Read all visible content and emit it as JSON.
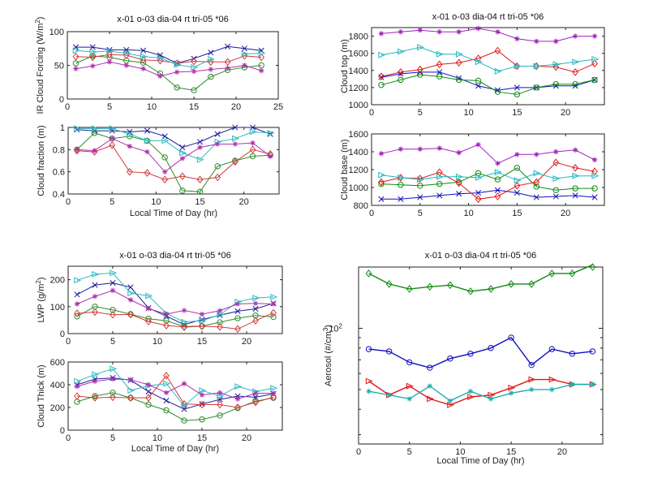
{
  "figure": {
    "legend_title": "x-01  o-03  dia-04  rt tri-05  *06"
  },
  "chart_data": [
    {
      "id": "ir-forcing",
      "type": "line",
      "title": "x-01  o-03  dia-04  rt tri-05  *06",
      "xlabel": "",
      "ylabel": "IR Cloud Forcing (W/m^2)",
      "xlim": [
        0,
        25
      ],
      "ylim": [
        0,
        100
      ],
      "xticks": [
        0,
        5,
        10,
        15,
        20,
        25
      ],
      "yticks": [
        0,
        50,
        100
      ],
      "x": [
        1,
        3,
        5,
        7,
        9,
        11,
        13,
        15,
        17,
        19,
        21,
        23
      ],
      "series": [
        {
          "name": "01",
          "marker": "x",
          "color": "#1a1a9a",
          "values": [
            77,
            77,
            73,
            73,
            72,
            65,
            53,
            60,
            69,
            78,
            75,
            72
          ]
        },
        {
          "name": "03",
          "marker": "o",
          "color": "#2e8b2e",
          "values": [
            53,
            64,
            62,
            57,
            54,
            38,
            17,
            13,
            33,
            43,
            47,
            50
          ]
        },
        {
          "name": "04",
          "marker": "diamond",
          "color": "#d03a3a",
          "values": [
            63,
            62,
            66,
            65,
            58,
            57,
            53,
            56,
            55,
            55,
            64,
            62
          ]
        },
        {
          "name": "05",
          "marker": "triangle-right",
          "color": "#30b8c0",
          "values": [
            72,
            70,
            71,
            68,
            63,
            61,
            51,
            47,
            59,
            null,
            67,
            68
          ]
        },
        {
          "name": "06",
          "marker": "star",
          "color": "#b030b0",
          "values": [
            45,
            49,
            55,
            50,
            45,
            34,
            40,
            41,
            44,
            46,
            50,
            42
          ]
        }
      ]
    },
    {
      "id": "cloud-fraction",
      "type": "line",
      "title": "",
      "xlabel": "Local Time of Day (hr)",
      "ylabel": "Cloud fraction (m)",
      "xlim": [
        0,
        24
      ],
      "ylim": [
        0.4,
        1
      ],
      "xticks": [
        0,
        5,
        10,
        15,
        20
      ],
      "yticks": [
        0.4,
        0.6,
        0.8,
        1
      ],
      "x": [
        1,
        3,
        5,
        7,
        9,
        11,
        13,
        15,
        17,
        19,
        21,
        23
      ],
      "series": [
        {
          "name": "01",
          "marker": "x",
          "color": "#1a1a9a",
          "values": [
            0.98,
            0.97,
            0.97,
            0.96,
            0.97,
            0.92,
            0.82,
            0.87,
            0.94,
            1.0,
            1.0,
            0.94
          ]
        },
        {
          "name": "03",
          "marker": "o",
          "color": "#2e8b2e",
          "values": [
            0.8,
            0.95,
            0.9,
            0.92,
            0.88,
            0.73,
            0.43,
            0.42,
            0.65,
            0.7,
            0.74,
            0.75
          ]
        },
        {
          "name": "04",
          "marker": "diamond",
          "color": "#d03a3a",
          "values": [
            0.79,
            0.78,
            0.84,
            0.6,
            0.59,
            0.53,
            0.56,
            0.53,
            0.55,
            0.69,
            0.8,
            0.76
          ]
        },
        {
          "name": "05",
          "marker": "triangle-right",
          "color": "#30b8c0",
          "values": [
            0.99,
            0.99,
            0.99,
            0.94,
            0.88,
            0.88,
            0.77,
            0.71,
            0.87,
            0.9,
            0.96,
            0.95
          ]
        },
        {
          "name": "06",
          "marker": "star",
          "color": "#b030b0",
          "values": [
            0.8,
            0.79,
            0.9,
            0.83,
            0.78,
            0.6,
            0.72,
            0.82,
            0.85,
            0.85,
            0.86,
            0.74
          ]
        }
      ]
    },
    {
      "id": "cloud-top",
      "type": "line",
      "title": "x-01  o-03  dia-04  rt tri-05  *06",
      "xlabel": "",
      "ylabel": "Cloud top (m)",
      "xlim": [
        0,
        24
      ],
      "ylim": [
        1000,
        1900
      ],
      "xticks": [
        0,
        5,
        10,
        15,
        20
      ],
      "yticks": [
        1000,
        1200,
        1400,
        1600,
        1800
      ],
      "x": [
        1,
        3,
        5,
        7,
        9,
        11,
        13,
        15,
        17,
        19,
        21,
        23
      ],
      "series": [
        {
          "name": "01",
          "marker": "x",
          "color": "#1010c0",
          "values": [
            1320,
            1360,
            1380,
            1380,
            1310,
            1220,
            1170,
            1200,
            1200,
            1220,
            1220,
            1290
          ]
        },
        {
          "name": "03",
          "marker": "o",
          "color": "#108a10",
          "values": [
            1230,
            1290,
            1350,
            1330,
            1290,
            1280,
            1150,
            1120,
            1200,
            1240,
            1240,
            1290
          ]
        },
        {
          "name": "04",
          "marker": "diamond",
          "color": "#e01818",
          "values": [
            1330,
            1380,
            1410,
            1470,
            1490,
            1540,
            1630,
            1450,
            1450,
            1440,
            1380,
            1480
          ]
        },
        {
          "name": "05",
          "marker": "triangle-right",
          "color": "#20b8c0",
          "values": [
            1580,
            1620,
            1670,
            1590,
            1590,
            1500,
            1390,
            1450,
            1450,
            1470,
            1500,
            1530
          ]
        },
        {
          "name": "06",
          "marker": "star",
          "color": "#a020c0",
          "values": [
            1830,
            1850,
            1870,
            1850,
            1850,
            1890,
            1850,
            1770,
            1740,
            1740,
            1800,
            1800
          ]
        }
      ]
    },
    {
      "id": "cloud-base",
      "type": "line",
      "title": "",
      "xlabel": "",
      "ylabel": "Cloud base (m)",
      "xlim": [
        0,
        24
      ],
      "ylim": [
        800,
        1600
      ],
      "xticks": [
        0,
        5,
        10,
        15,
        20
      ],
      "yticks": [
        800,
        1000,
        1200,
        1400,
        1600
      ],
      "x": [
        1,
        3,
        5,
        7,
        9,
        11,
        13,
        15,
        17,
        19,
        21,
        23
      ],
      "series": [
        {
          "name": "01",
          "marker": "x",
          "color": "#1010c0",
          "values": [
            870,
            870,
            890,
            910,
            930,
            940,
            970,
            940,
            890,
            900,
            910,
            890
          ]
        },
        {
          "name": "03",
          "marker": "o",
          "color": "#108a10",
          "values": [
            1040,
            1030,
            1020,
            1040,
            1060,
            1160,
            1090,
            1220,
            1010,
            970,
            990,
            990
          ]
        },
        {
          "name": "04",
          "marker": "diamond",
          "color": "#e01818",
          "values": [
            1060,
            1110,
            1100,
            1170,
            1050,
            870,
            900,
            1020,
            1060,
            1280,
            1220,
            1180
          ]
        },
        {
          "name": "05",
          "marker": "triangle-right",
          "color": "#20b8c0",
          "values": [
            1140,
            1110,
            1090,
            1120,
            1120,
            1110,
            1170,
            1080,
            1160,
            1100,
            1130,
            1130
          ]
        },
        {
          "name": "06",
          "marker": "star",
          "color": "#a020c0",
          "values": [
            1380,
            1430,
            1430,
            1440,
            1390,
            1480,
            1270,
            1370,
            1370,
            1400,
            1420,
            1310
          ]
        }
      ]
    },
    {
      "id": "lwp",
      "type": "line",
      "title": "x-01  o-03  dia-04  rt tri-05  *06",
      "xlabel": "",
      "ylabel": "LWP (g/m^2)",
      "xlim": [
        0,
        24
      ],
      "ylim": [
        0,
        250
      ],
      "xticks": [
        0,
        5,
        10,
        15,
        20
      ],
      "yticks": [
        0,
        100,
        200
      ],
      "x": [
        1,
        3,
        5,
        7,
        9,
        11,
        13,
        15,
        17,
        19,
        21,
        23
      ],
      "series": [
        {
          "name": "01",
          "marker": "x",
          "color": "#1a1a9a",
          "values": [
            145,
            180,
            188,
            172,
            95,
            65,
            33,
            52,
            68,
            83,
            92,
            112
          ]
        },
        {
          "name": "03",
          "marker": "o",
          "color": "#2e8b2e",
          "values": [
            64,
            100,
            88,
            72,
            55,
            48,
            26,
            28,
            42,
            57,
            67,
            62
          ]
        },
        {
          "name": "04",
          "marker": "diamond",
          "color": "#d03a3a",
          "values": [
            75,
            80,
            70,
            71,
            45,
            30,
            24,
            27,
            25,
            17,
            48,
            77
          ]
        },
        {
          "name": "05",
          "marker": "triangle-right",
          "color": "#30b8c0",
          "values": [
            198,
            220,
            225,
            150,
            140,
            75,
            43,
            48,
            70,
            118,
            132,
            136
          ]
        },
        {
          "name": "06",
          "marker": "star",
          "color": "#b030b0",
          "values": [
            110,
            138,
            160,
            125,
            93,
            72,
            86,
            72,
            85,
            110,
            112,
            110
          ]
        }
      ]
    },
    {
      "id": "cloud-thick",
      "type": "line",
      "title": "",
      "xlabel": "Local Time of Day (hr)",
      "ylabel": "Cloud Thick (m)",
      "xlim": [
        0,
        24
      ],
      "ylim": [
        0,
        600
      ],
      "xticks": [
        0,
        5,
        10,
        15,
        20
      ],
      "yticks": [
        0,
        200,
        400,
        600
      ],
      "x": [
        1,
        3,
        5,
        7,
        9,
        11,
        13,
        15,
        17,
        19,
        21,
        23
      ],
      "series": [
        {
          "name": "01",
          "marker": "x",
          "color": "#1a1a9a",
          "values": [
            400,
            450,
            460,
            440,
            340,
            260,
            185,
            230,
            270,
            300,
            290,
            320
          ]
        },
        {
          "name": "03",
          "marker": "o",
          "color": "#2e8b2e",
          "values": [
            250,
            300,
            330,
            285,
            225,
            175,
            85,
            95,
            130,
            195,
            255,
            285
          ]
        },
        {
          "name": "04",
          "marker": "diamond",
          "color": "#d03a3a",
          "values": [
            300,
            285,
            290,
            285,
            285,
            480,
            230,
            225,
            225,
            200,
            245,
            290
          ]
        },
        {
          "name": "05",
          "marker": "triangle-right",
          "color": "#30b8c0",
          "values": [
            430,
            490,
            540,
            350,
            390,
            410,
            215,
            350,
            300,
            385,
            340,
            370
          ]
        },
        {
          "name": "06",
          "marker": "star",
          "color": "#b030b0",
          "values": [
            385,
            430,
            450,
            445,
            400,
            330,
            410,
            310,
            330,
            275,
            325,
            325
          ]
        }
      ]
    },
    {
      "id": "aerosol",
      "type": "line",
      "title": "x-01  o-03  dia-04  rt tri-05  *06",
      "xlabel": "Local Time of Day (hr)",
      "ylabel": "Aerosol (#/cm^3)",
      "yscale": "log",
      "xlim": [
        0,
        24
      ],
      "ylim": [
        27,
        200
      ],
      "xticks": [
        0,
        5,
        10,
        15,
        20
      ],
      "yticks_major": [
        {
          "value": 100,
          "label": "10^2"
        }
      ],
      "yticks_minor": [
        30,
        40,
        50,
        60,
        70,
        80,
        90
      ],
      "x": [
        1,
        3,
        5,
        7,
        9,
        11,
        13,
        15,
        17,
        19,
        21,
        23
      ],
      "series": [
        {
          "name": "01",
          "marker": "o",
          "color": "#1010c0",
          "values": [
            79,
            77,
            68,
            64,
            71,
            75,
            80,
            90,
            66,
            79,
            75,
            77
          ]
        },
        {
          "name": "03",
          "marker": "diamond",
          "color": "#108a10",
          "values": [
            186,
            165,
            156,
            160,
            163,
            152,
            156,
            165,
            165,
            186,
            186,
            205
          ]
        },
        {
          "name": "04",
          "marker": "triangle-right",
          "color": "#e01818",
          "values": [
            55,
            47,
            52,
            45,
            42,
            46,
            47,
            51,
            56,
            56,
            53,
            53
          ]
        },
        {
          "name": "05",
          "marker": "star",
          "color": "#20b0b0",
          "values": [
            49,
            47,
            45,
            52,
            44,
            49,
            45,
            48,
            50,
            50,
            53,
            53
          ]
        }
      ]
    }
  ]
}
